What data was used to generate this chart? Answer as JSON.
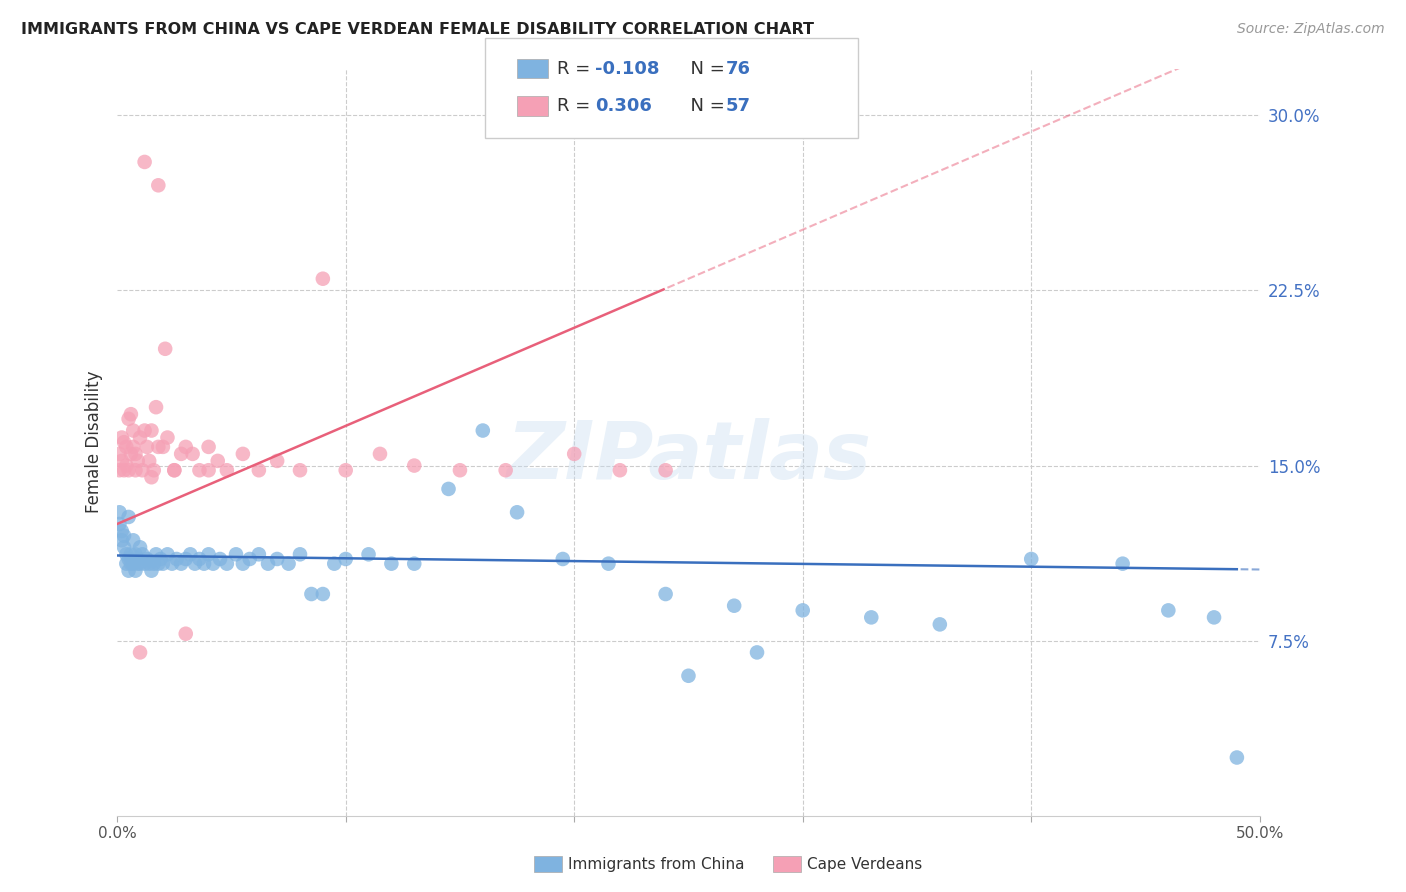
{
  "title": "IMMIGRANTS FROM CHINA VS CAPE VERDEAN FEMALE DISABILITY CORRELATION CHART",
  "source": "Source: ZipAtlas.com",
  "ylabel": "Female Disability",
  "x_min": 0.0,
  "x_max": 0.5,
  "y_min": 0.0,
  "y_max": 0.32,
  "x_tick_vals": [
    0.0,
    0.1,
    0.2,
    0.3,
    0.4,
    0.5
  ],
  "x_tick_labels_bottom": [
    "0.0%",
    "",
    "",
    "",
    "",
    "50.0%"
  ],
  "y_ticks_right": [
    0.075,
    0.15,
    0.225,
    0.3
  ],
  "y_tick_labels_right": [
    "7.5%",
    "15.0%",
    "22.5%",
    "30.0%"
  ],
  "blue_color": "#7fb3e0",
  "pink_color": "#f5a0b5",
  "blue_line_color": "#3a6fbe",
  "pink_line_color": "#e8607a",
  "legend_label_blue": "Immigrants from China",
  "legend_label_pink": "Cape Verdeans",
  "watermark": "ZIPatlas",
  "blue_R": -0.108,
  "blue_N": 76,
  "pink_R": 0.306,
  "pink_N": 57,
  "blue_scatter_x": [
    0.001,
    0.001,
    0.002,
    0.002,
    0.003,
    0.003,
    0.004,
    0.004,
    0.005,
    0.005,
    0.005,
    0.006,
    0.006,
    0.007,
    0.007,
    0.008,
    0.008,
    0.009,
    0.009,
    0.01,
    0.01,
    0.011,
    0.012,
    0.013,
    0.014,
    0.015,
    0.016,
    0.017,
    0.018,
    0.019,
    0.02,
    0.022,
    0.024,
    0.026,
    0.028,
    0.03,
    0.032,
    0.034,
    0.036,
    0.038,
    0.04,
    0.042,
    0.045,
    0.048,
    0.052,
    0.055,
    0.058,
    0.062,
    0.066,
    0.07,
    0.075,
    0.08,
    0.085,
    0.09,
    0.095,
    0.1,
    0.11,
    0.12,
    0.13,
    0.145,
    0.16,
    0.175,
    0.195,
    0.215,
    0.24,
    0.27,
    0.3,
    0.33,
    0.36,
    0.4,
    0.44,
    0.46,
    0.48,
    0.49,
    0.25,
    0.28
  ],
  "blue_scatter_y": [
    0.125,
    0.13,
    0.118,
    0.122,
    0.115,
    0.12,
    0.112,
    0.108,
    0.11,
    0.105,
    0.128,
    0.112,
    0.108,
    0.118,
    0.108,
    0.112,
    0.105,
    0.11,
    0.108,
    0.115,
    0.108,
    0.112,
    0.108,
    0.11,
    0.108,
    0.105,
    0.108,
    0.112,
    0.108,
    0.11,
    0.108,
    0.112,
    0.108,
    0.11,
    0.108,
    0.11,
    0.112,
    0.108,
    0.11,
    0.108,
    0.112,
    0.108,
    0.11,
    0.108,
    0.112,
    0.108,
    0.11,
    0.112,
    0.108,
    0.11,
    0.108,
    0.112,
    0.095,
    0.095,
    0.108,
    0.11,
    0.112,
    0.108,
    0.108,
    0.14,
    0.165,
    0.13,
    0.11,
    0.108,
    0.095,
    0.09,
    0.088,
    0.085,
    0.082,
    0.11,
    0.108,
    0.088,
    0.085,
    0.025,
    0.06,
    0.07
  ],
  "pink_scatter_x": [
    0.001,
    0.001,
    0.002,
    0.002,
    0.003,
    0.003,
    0.004,
    0.004,
    0.005,
    0.005,
    0.006,
    0.006,
    0.007,
    0.007,
    0.008,
    0.008,
    0.009,
    0.01,
    0.011,
    0.012,
    0.013,
    0.014,
    0.015,
    0.016,
    0.017,
    0.018,
    0.02,
    0.022,
    0.025,
    0.028,
    0.03,
    0.033,
    0.036,
    0.04,
    0.044,
    0.048,
    0.055,
    0.062,
    0.07,
    0.08,
    0.09,
    0.1,
    0.115,
    0.13,
    0.15,
    0.17,
    0.2,
    0.22,
    0.24,
    0.03,
    0.04,
    0.018,
    0.021,
    0.025,
    0.015,
    0.01,
    0.012
  ],
  "pink_scatter_y": [
    0.148,
    0.155,
    0.152,
    0.162,
    0.148,
    0.16,
    0.15,
    0.158,
    0.148,
    0.17,
    0.155,
    0.172,
    0.158,
    0.165,
    0.148,
    0.155,
    0.152,
    0.162,
    0.148,
    0.165,
    0.158,
    0.152,
    0.165,
    0.148,
    0.175,
    0.158,
    0.158,
    0.162,
    0.148,
    0.155,
    0.158,
    0.155,
    0.148,
    0.158,
    0.152,
    0.148,
    0.155,
    0.148,
    0.152,
    0.148,
    0.23,
    0.148,
    0.155,
    0.15,
    0.148,
    0.148,
    0.155,
    0.148,
    0.148,
    0.078,
    0.148,
    0.27,
    0.2,
    0.148,
    0.145,
    0.07,
    0.28
  ]
}
